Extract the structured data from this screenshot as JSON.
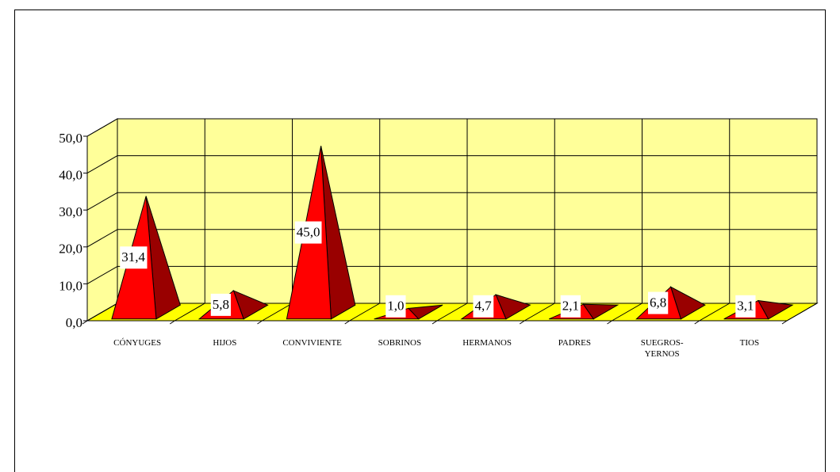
{
  "chart_data": {
    "type": "bar3d",
    "categories": [
      "CÓNYUGES",
      "HIJOS",
      "CONVIVIENTE",
      "SOBRINOS",
      "HERMANOS",
      "PADRES",
      "SUEGROS- YERNOS",
      "TIOS"
    ],
    "values": [
      31.4,
      5.8,
      45.0,
      1.0,
      4.7,
      2.1,
      6.8,
      3.1
    ],
    "value_labels": [
      "31,4",
      "5,8",
      "45,0",
      "1,0",
      "4,7",
      "2,1",
      "6,8",
      "3,1"
    ],
    "color": "#ff0000",
    "ylim": [
      0,
      50
    ],
    "yticks": [
      {
        "value": 0,
        "label": "0,0"
      },
      {
        "value": 10,
        "label": "10,0"
      },
      {
        "value": 20,
        "label": "20,0"
      },
      {
        "value": 30,
        "label": "30,0"
      },
      {
        "value": 40,
        "label": "40,0"
      },
      {
        "value": 50,
        "label": "50,0"
      }
    ],
    "grid": true
  }
}
